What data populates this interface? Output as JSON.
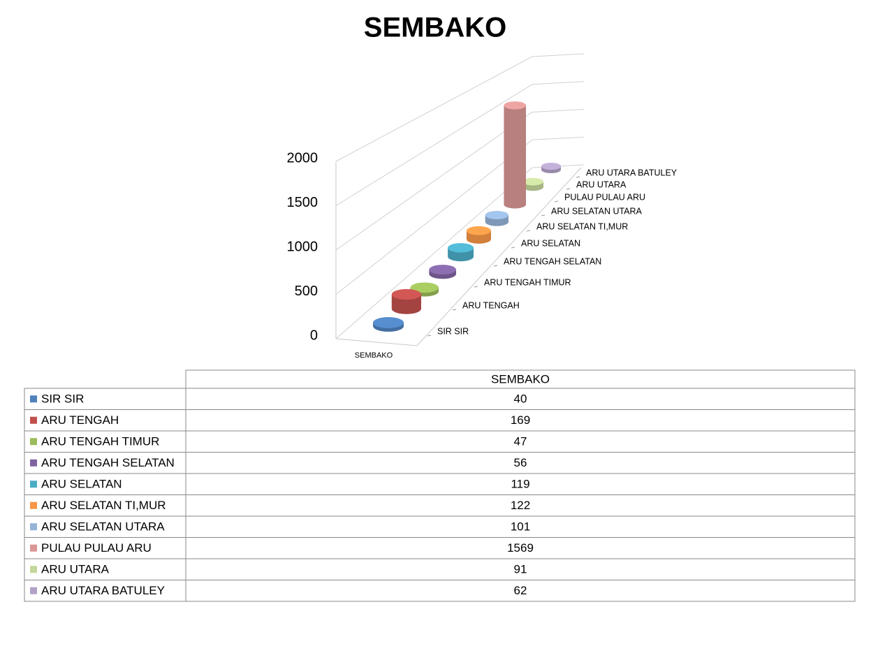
{
  "chart_data": {
    "type": "bar",
    "title": "SEMBAKO",
    "categories": [
      "SEMBAKO"
    ],
    "series": [
      {
        "name": "SIR SIR",
        "color": "#4f81bd",
        "values": [
          40
        ]
      },
      {
        "name": "ARU TENGAH",
        "color": "#c0504d",
        "values": [
          169
        ]
      },
      {
        "name": "ARU TENGAH TIMUR",
        "color": "#9bbb59",
        "values": [
          47
        ]
      },
      {
        "name": "ARU TENGAH SELATAN",
        "color": "#8064a2",
        "values": [
          56
        ]
      },
      {
        "name": "ARU SELATAN",
        "color": "#4bacc6",
        "values": [
          119
        ]
      },
      {
        "name": "ARU SELATAN TI,MUR",
        "color": "#f79646",
        "values": [
          122
        ]
      },
      {
        "name": "ARU SELATAN UTARA",
        "color": "#95b3d7",
        "values": [
          101
        ]
      },
      {
        "name": "PULAU PULAU ARU",
        "color": "#d99694",
        "values": [
          1569
        ]
      },
      {
        "name": "ARU UTARA",
        "color": "#c3d69b",
        "values": [
          91
        ]
      },
      {
        "name": "ARU UTARA BATULEY",
        "color": "#b3a2c7",
        "values": [
          62
        ]
      }
    ],
    "ylim": [
      0,
      2000
    ],
    "yticks": [
      0,
      500,
      1000,
      1500,
      2000
    ],
    "grid": true
  }
}
